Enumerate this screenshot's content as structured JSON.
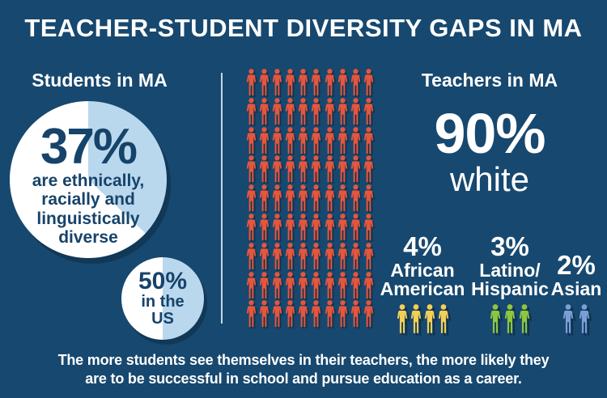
{
  "title": "TEACHER-STUDENT DIVERSITY GAPS IN MA",
  "students": {
    "header": "Students in MA",
    "ma_pct": "37%",
    "ma_lines": [
      "are ethnically,",
      "racially and",
      "linguistically",
      "diverse"
    ],
    "us_pct": "50%",
    "us_lines": [
      "in the",
      "US"
    ]
  },
  "pictograph": {
    "icon": "person-icon",
    "rows": 9,
    "cols": 10,
    "total": 90,
    "color": "#E4563E"
  },
  "teachers": {
    "header": "Teachers in MA",
    "white_pct": "90%",
    "white_label": "white",
    "groups": [
      {
        "pct": "4%",
        "label_lines": [
          "African",
          "American"
        ],
        "count": 4,
        "color": "#F2CF55"
      },
      {
        "pct": "3%",
        "label_lines": [
          "Latino/",
          "Hispanic"
        ],
        "count": 3,
        "color": "#8DC63F"
      },
      {
        "pct": "2%",
        "label_lines": [
          "Asian"
        ],
        "count": 2,
        "color": "#7C9ED6"
      }
    ]
  },
  "footer": {
    "lines": [
      "The more students see themselves in their teachers, the more likely they",
      "are to be successful in school and pursue education as a career."
    ]
  },
  "colors": {
    "background": "#17486F",
    "navy": "#17436A",
    "light_blue": "#B9D8EE",
    "red": "#E4563E",
    "yellow": "#F2CF55",
    "green": "#8DC63F",
    "periwinkle": "#7C9ED6",
    "divider": "#C6D9E7"
  },
  "chart_data": [
    {
      "type": "pie",
      "title": "Students in MA",
      "slices": [
        {
          "label": "ethnically, racially and linguistically diverse",
          "value": 37
        },
        {
          "label": "other",
          "value": 63
        }
      ],
      "unit": "percent"
    },
    {
      "type": "pie",
      "title": "Students in the US",
      "slices": [
        {
          "label": "ethnically, racially and linguistically diverse",
          "value": 50
        },
        {
          "label": "other",
          "value": 50
        }
      ],
      "unit": "percent"
    },
    {
      "type": "pictograph",
      "title": "Teachers in MA",
      "categories": [
        "White",
        "African American",
        "Latino/Hispanic",
        "Asian"
      ],
      "values": [
        90,
        4,
        3,
        2
      ],
      "unit": "percent"
    }
  ]
}
